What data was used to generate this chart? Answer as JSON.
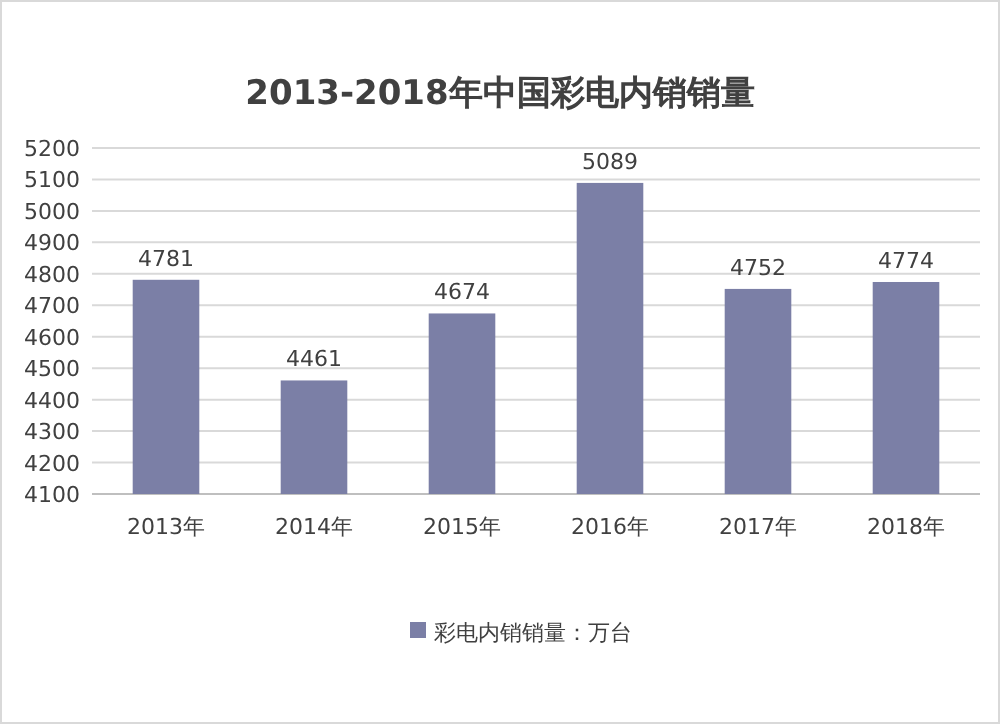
{
  "chart_data": {
    "type": "bar",
    "title": "2013-2018年中国彩电内销销量",
    "categories": [
      "2013年",
      "2014年",
      "2015年",
      "2016年",
      "2017年",
      "2018年"
    ],
    "series": [
      {
        "name": "彩电内销销量：万台",
        "color": "#7b7fa6",
        "values": [
          4781,
          4461,
          4674,
          5089,
          4752,
          4774
        ]
      }
    ],
    "ylim": [
      4100,
      5200
    ],
    "yticks": [
      4100,
      4200,
      4300,
      4400,
      4500,
      4600,
      4700,
      4800,
      4900,
      5000,
      5100,
      5200
    ],
    "grid": "y",
    "legend": "bottom",
    "data_labels": true
  }
}
